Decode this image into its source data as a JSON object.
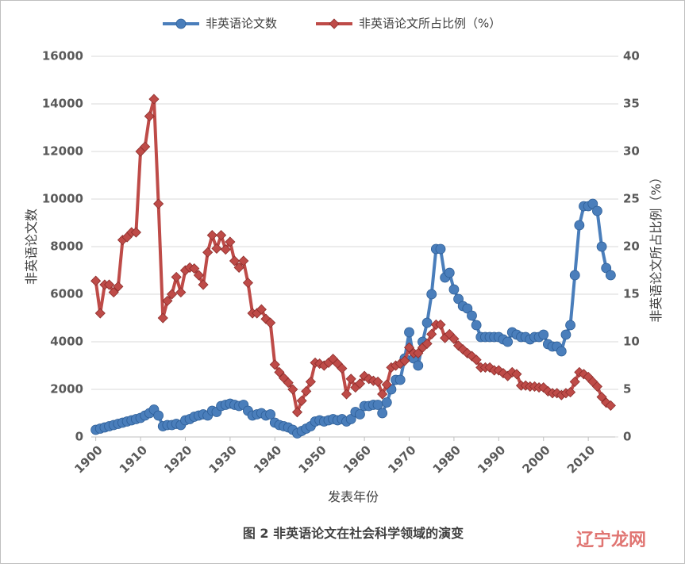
{
  "chart_data": {
    "type": "line",
    "legend": "top",
    "ylabel": "非英语论文数",
    "y2label": "非英语论文所占比例（%）",
    "xlabel": "发表年份",
    "caption": "图 2 非英语论文在社会科学领域的演变",
    "watermark": "辽宁龙网",
    "x": [
      1900,
      1901,
      1902,
      1903,
      1904,
      1905,
      1906,
      1907,
      1908,
      1909,
      1910,
      1911,
      1912,
      1913,
      1914,
      1915,
      1916,
      1917,
      1918,
      1919,
      1920,
      1921,
      1922,
      1923,
      1924,
      1925,
      1926,
      1927,
      1928,
      1929,
      1930,
      1931,
      1932,
      1933,
      1934,
      1935,
      1936,
      1937,
      1938,
      1939,
      1940,
      1941,
      1942,
      1943,
      1944,
      1945,
      1946,
      1947,
      1948,
      1949,
      1950,
      1951,
      1952,
      1953,
      1954,
      1955,
      1956,
      1957,
      1958,
      1959,
      1960,
      1961,
      1962,
      1963,
      1964,
      1965,
      1966,
      1967,
      1968,
      1969,
      1970,
      1971,
      1972,
      1973,
      1974,
      1975,
      1976,
      1977,
      1978,
      1979,
      1980,
      1981,
      1982,
      1983,
      1984,
      1985,
      1986,
      1987,
      1988,
      1989,
      1990,
      1991,
      1992,
      1993,
      1994,
      1995,
      1996,
      1997,
      1998,
      1999,
      2000,
      2001,
      2002,
      2003,
      2004,
      2005,
      2006,
      2007,
      2008,
      2009,
      2010,
      2011,
      2012,
      2013,
      2014,
      2015
    ],
    "xlim": [
      1899,
      2016
    ],
    "xticks": [
      1900,
      1910,
      1920,
      1930,
      1940,
      1950,
      1960,
      1970,
      1980,
      1990,
      2000,
      2010
    ],
    "ylim": [
      0,
      16000
    ],
    "yticks": [
      0,
      2000,
      4000,
      6000,
      8000,
      10000,
      12000,
      14000,
      16000
    ],
    "y2lim": [
      0,
      40
    ],
    "y2ticks": [
      0,
      5,
      10,
      15,
      20,
      25,
      30,
      35,
      40
    ],
    "grid": true,
    "series": [
      {
        "name": "非英语论文数",
        "color": "#4a7ebb",
        "marker": "circle",
        "values": [
          300,
          350,
          400,
          450,
          500,
          550,
          600,
          650,
          700,
          750,
          800,
          900,
          1000,
          1150,
          900,
          450,
          500,
          500,
          550,
          500,
          700,
          750,
          850,
          900,
          950,
          900,
          1100,
          1050,
          1300,
          1350,
          1400,
          1350,
          1300,
          1350,
          1100,
          900,
          950,
          1000,
          900,
          950,
          600,
          500,
          450,
          400,
          300,
          150,
          250,
          350,
          450,
          650,
          700,
          650,
          700,
          750,
          700,
          750,
          650,
          750,
          1050,
          950,
          1300,
          1300,
          1350,
          1350,
          1000,
          1450,
          2000,
          2400,
          2400,
          3300,
          4400,
          3300,
          3000,
          4000,
          4800,
          6000,
          7900,
          7900,
          6700,
          6900,
          6200,
          5800,
          5500,
          5400,
          5100,
          4700,
          4200,
          4200,
          4200,
          4200,
          4200,
          4100,
          4000,
          4400,
          4300,
          4200,
          4200,
          4100,
          4200,
          4200,
          4300,
          3900,
          3800,
          3800,
          3600,
          4300,
          4700,
          6800,
          8900,
          9700,
          9700,
          9800,
          9500,
          8000,
          7100,
          6800
        ]
      },
      {
        "name": "非英语论文所占比例（%）",
        "color": "#be4b48",
        "marker": "diamond",
        "axis": "y2",
        "values": [
          16.4,
          13,
          16,
          16,
          15.2,
          15.8,
          20.7,
          21,
          21.5,
          21.5,
          30,
          30.5,
          33.7,
          35.5,
          24.5,
          12.5,
          14.3,
          15,
          16.8,
          15.2,
          17.5,
          17.8,
          17.7,
          17,
          16,
          19.4,
          21.2,
          19.8,
          21.2,
          19.7,
          20.5,
          18.5,
          17.8,
          18.5,
          16.2,
          13,
          13,
          13.4,
          12.4,
          12,
          7.6,
          6.8,
          6.2,
          5.7,
          5,
          2.6,
          3.8,
          4.8,
          5.8,
          7.8,
          7.7,
          7.5,
          7.8,
          8.2,
          7.7,
          7.2,
          4.5,
          6.1,
          5.2,
          5.6,
          6.4,
          6.1,
          5.9,
          5.8,
          4.5,
          5.5,
          7.3,
          7.5,
          7.7,
          8,
          9.4,
          8.8,
          8.8,
          9.4,
          9.8,
          10.8,
          11.8,
          11.8,
          10.4,
          10.8,
          10.3,
          9.6,
          9.2,
          8.8,
          8.5,
          8.1,
          7.3,
          7.3,
          7.3,
          7,
          7,
          6.7,
          6.4,
          6.8,
          6.6,
          5.4,
          5.4,
          5.3,
          5.3,
          5.2,
          5.2,
          4.8,
          4.6,
          4.6,
          4.4,
          4.6,
          4.7,
          5.8,
          6.8,
          6.6,
          6.3,
          5.8,
          5.3,
          4.2,
          3.6,
          3.3
        ]
      }
    ]
  }
}
